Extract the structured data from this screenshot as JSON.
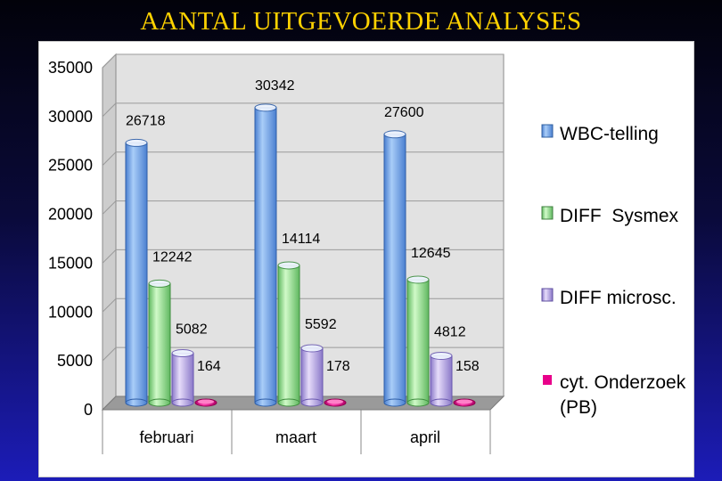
{
  "title": "AANTAL UITGEVOERDE ANALYSES",
  "chart_data": {
    "type": "bar",
    "title": "AANTAL UITGEVOERDE ANALYSES",
    "categories": [
      "februari",
      "maart",
      "april"
    ],
    "series": [
      {
        "name": "WBC-telling",
        "values": [
          26718,
          30342,
          27600
        ],
        "color": "#7fb2f0"
      },
      {
        "name": "DIFF  Sysmex",
        "values": [
          12242,
          14114,
          12645
        ],
        "color": "#a8f0a0"
      },
      {
        "name": "DIFF microsc.",
        "values": [
          5082,
          5592,
          4812
        ],
        "color": "#c8b8f0"
      },
      {
        "name": "cyt. Onderzoek (PB)",
        "values": [
          164,
          178,
          158
        ],
        "color": "#e8008a"
      }
    ],
    "ylim": [
      0,
      35000
    ],
    "yticks": [
      0,
      5000,
      10000,
      15000,
      20000,
      25000,
      30000,
      35000
    ],
    "grid": true,
    "legend_position": "right",
    "labels": {
      "wbc": [
        "26718",
        "30342",
        "27600"
      ],
      "sysmex": [
        "12242",
        "14114",
        "12645"
      ],
      "micro": [
        "5082",
        "5592",
        "4812"
      ],
      "cyt": [
        "164",
        "178",
        "158"
      ]
    },
    "legend": {
      "wbc": "WBC-telling",
      "sysmex": "DIFF  Sysmex",
      "micro": "DIFF microsc.",
      "cyt_line1": "cyt. Onderzoek",
      "cyt_line2": "(PB)"
    },
    "tick_labels": [
      "0",
      "5000",
      "10000",
      "15000",
      "20000",
      "25000",
      "30000",
      "35000"
    ]
  }
}
